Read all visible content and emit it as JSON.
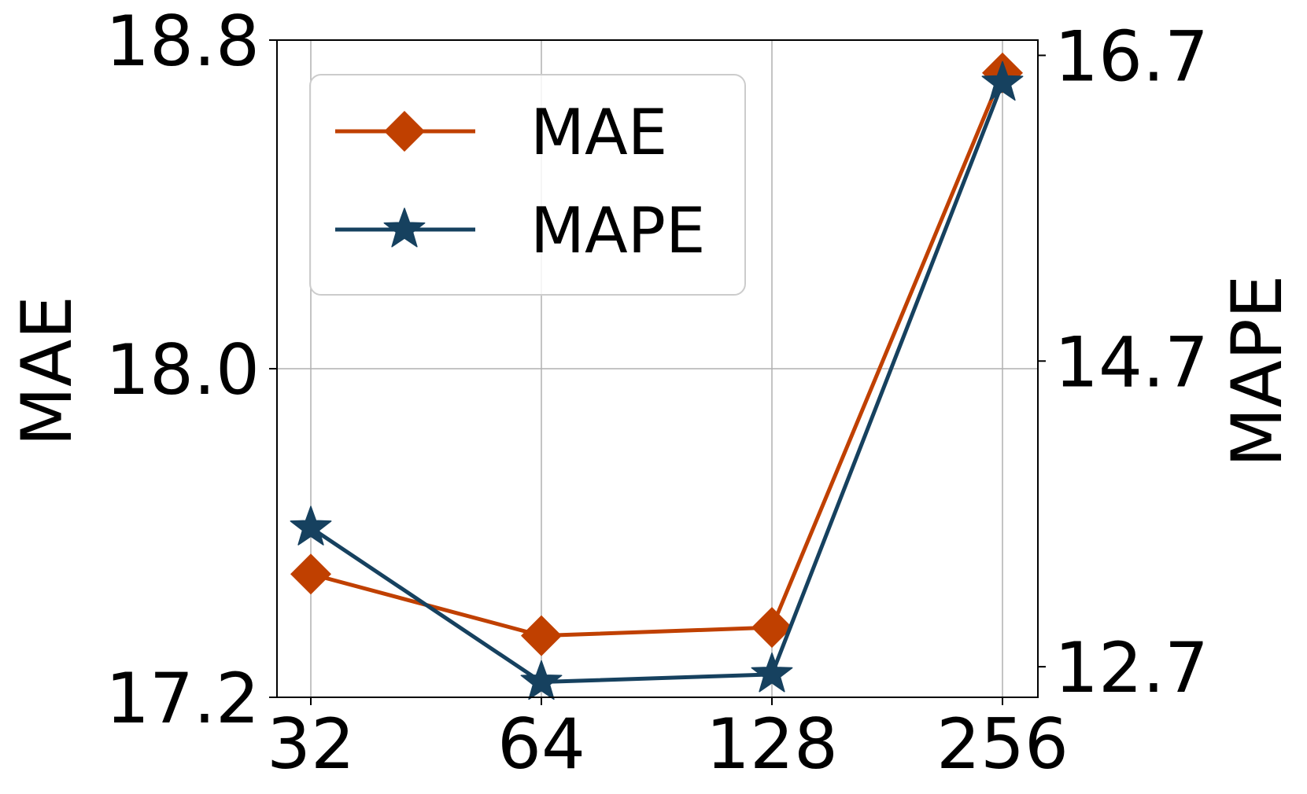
{
  "chart_data": {
    "type": "line",
    "x": [
      "32",
      "64",
      "128",
      "256"
    ],
    "xlabel": "",
    "y_left": {
      "label": "MAE",
      "ylim": [
        17.2,
        18.8
      ],
      "ticks": [
        "17.2",
        "18.0",
        "18.8"
      ]
    },
    "y_right": {
      "label": "MAPE",
      "ylim": [
        12.5,
        16.8
      ],
      "ticks": [
        "12.7",
        "14.7",
        "16.7"
      ]
    },
    "series": [
      {
        "name": "MAE",
        "axis": "left",
        "values": [
          17.5,
          17.35,
          17.37,
          18.72
        ],
        "color": "#C04000",
        "marker": "diamond"
      },
      {
        "name": "MAPE",
        "axis": "right",
        "values": [
          13.61,
          12.6,
          12.65,
          16.52
        ],
        "color": "#16415F",
        "marker": "star"
      }
    ],
    "grid": true,
    "legend": "upper-left"
  }
}
